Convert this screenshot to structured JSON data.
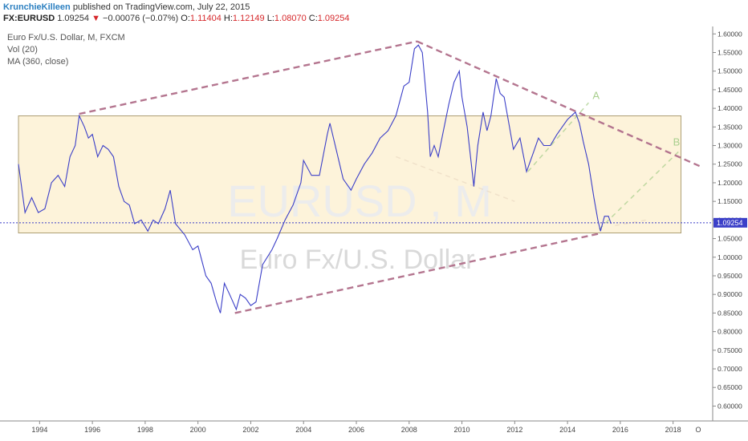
{
  "header": {
    "author": "KrunchieKilleen",
    "published_text": "published on TradingView.com, July 22, 2015"
  },
  "quote": {
    "symbol": "FX:EURUSD",
    "last": "1.09254",
    "change": "−0.00076 (−0.07%)",
    "open_label": "O:",
    "open": "1.11404",
    "high_label": "H:",
    "high": "1.12149",
    "low_label": "L:",
    "low": "1.08070",
    "close_label": "C:",
    "close": "1.09254"
  },
  "legend": {
    "title": "Euro Fx/U.S. Dollar, M, FXCM",
    "volume": "Vol (20)",
    "ma": "MA (360, close)"
  },
  "watermark": {
    "symbol": "EURUSD , M",
    "name": "Euro Fx/U.S. Dollar"
  },
  "annotations": {
    "label_a": "A",
    "label_b": "B"
  },
  "colors": {
    "price_line": "#3b3fc8",
    "trend_line": "#b4758f",
    "projection": "#a9cf8e",
    "zone_fill": "#fdf1d3",
    "zone_border": "#9a8a5a",
    "last_price_bg": "#3b3fc8"
  },
  "chart_data": {
    "type": "line",
    "series": [
      {
        "values": [
          [
            1993.2,
            1.25
          ],
          [
            1993.45,
            1.12
          ],
          [
            1993.7,
            1.16
          ],
          [
            1993.95,
            1.12
          ],
          [
            1994.2,
            1.13
          ],
          [
            1994.45,
            1.2
          ],
          [
            1994.7,
            1.22
          ],
          [
            1994.95,
            1.19
          ],
          [
            1995.15,
            1.27
          ],
          [
            1995.35,
            1.3
          ],
          [
            1995.5,
            1.38
          ],
          [
            1995.7,
            1.35
          ],
          [
            1995.85,
            1.32
          ],
          [
            1996.0,
            1.33
          ],
          [
            1996.2,
            1.27
          ],
          [
            1996.4,
            1.3
          ],
          [
            1996.6,
            1.29
          ],
          [
            1996.8,
            1.27
          ],
          [
            1997.0,
            1.19
          ],
          [
            1997.2,
            1.15
          ],
          [
            1997.4,
            1.14
          ],
          [
            1997.6,
            1.09
          ],
          [
            1997.85,
            1.1
          ],
          [
            1998.1,
            1.07
          ],
          [
            1998.3,
            1.1
          ],
          [
            1998.5,
            1.09
          ],
          [
            1998.75,
            1.13
          ],
          [
            1998.95,
            1.18
          ],
          [
            1999.15,
            1.09
          ],
          [
            1999.5,
            1.06
          ],
          [
            1999.8,
            1.02
          ],
          [
            2000.0,
            1.03
          ],
          [
            2000.3,
            0.95
          ],
          [
            2000.5,
            0.93
          ],
          [
            2000.7,
            0.88
          ],
          [
            2000.85,
            0.85
          ],
          [
            2001.0,
            0.93
          ],
          [
            2001.2,
            0.9
          ],
          [
            2001.45,
            0.86
          ],
          [
            2001.6,
            0.9
          ],
          [
            2001.8,
            0.89
          ],
          [
            2002.0,
            0.87
          ],
          [
            2002.2,
            0.88
          ],
          [
            2002.45,
            0.98
          ],
          [
            2002.8,
            1.02
          ],
          [
            2003.0,
            1.05
          ],
          [
            2003.3,
            1.1
          ],
          [
            2003.6,
            1.14
          ],
          [
            2003.9,
            1.2
          ],
          [
            2004.0,
            1.26
          ],
          [
            2004.3,
            1.22
          ],
          [
            2004.6,
            1.22
          ],
          [
            2004.9,
            1.33
          ],
          [
            2005.0,
            1.36
          ],
          [
            2005.2,
            1.3
          ],
          [
            2005.5,
            1.21
          ],
          [
            2005.8,
            1.18
          ],
          [
            2006.0,
            1.21
          ],
          [
            2006.3,
            1.25
          ],
          [
            2006.6,
            1.28
          ],
          [
            2006.9,
            1.32
          ],
          [
            2007.2,
            1.34
          ],
          [
            2007.5,
            1.38
          ],
          [
            2007.8,
            1.46
          ],
          [
            2008.0,
            1.47
          ],
          [
            2008.2,
            1.56
          ],
          [
            2008.35,
            1.57
          ],
          [
            2008.5,
            1.55
          ],
          [
            2008.6,
            1.47
          ],
          [
            2008.7,
            1.39
          ],
          [
            2008.8,
            1.27
          ],
          [
            2008.95,
            1.3
          ],
          [
            2009.1,
            1.27
          ],
          [
            2009.3,
            1.34
          ],
          [
            2009.5,
            1.41
          ],
          [
            2009.7,
            1.47
          ],
          [
            2009.9,
            1.5
          ],
          [
            2010.0,
            1.43
          ],
          [
            2010.2,
            1.35
          ],
          [
            2010.45,
            1.19
          ],
          [
            2010.6,
            1.3
          ],
          [
            2010.8,
            1.39
          ],
          [
            2010.95,
            1.34
          ],
          [
            2011.1,
            1.38
          ],
          [
            2011.3,
            1.48
          ],
          [
            2011.45,
            1.44
          ],
          [
            2011.6,
            1.43
          ],
          [
            2011.8,
            1.35
          ],
          [
            2011.95,
            1.29
          ],
          [
            2012.2,
            1.32
          ],
          [
            2012.45,
            1.23
          ],
          [
            2012.7,
            1.28
          ],
          [
            2012.9,
            1.32
          ],
          [
            2013.1,
            1.3
          ],
          [
            2013.35,
            1.3
          ],
          [
            2013.6,
            1.33
          ],
          [
            2013.8,
            1.35
          ],
          [
            2014.0,
            1.37
          ],
          [
            2014.3,
            1.39
          ],
          [
            2014.45,
            1.36
          ],
          [
            2014.6,
            1.31
          ],
          [
            2014.8,
            1.25
          ],
          [
            2015.0,
            1.16
          ],
          [
            2015.15,
            1.1
          ],
          [
            2015.25,
            1.07
          ],
          [
            2015.4,
            1.11
          ],
          [
            2015.55,
            1.11
          ],
          [
            2015.65,
            1.09
          ]
        ]
      }
    ],
    "xlim": [
      1992.5,
      2019.5
    ],
    "ylim": [
      0.56,
      1.62
    ],
    "x_ticks": [
      1994,
      1996,
      1998,
      2000,
      2002,
      2004,
      2006,
      2008,
      2010,
      2012,
      2014,
      2016,
      2018
    ],
    "x_tick_labels": [
      "1994",
      "1996",
      "1998",
      "2000",
      "2002",
      "2004",
      "2006",
      "2008",
      "2010",
      "2012",
      "2014",
      "2016",
      "2018"
    ],
    "x_extra_label": "O",
    "y_ticks": [
      0.6,
      0.65,
      0.7,
      0.75,
      0.8,
      0.85,
      0.9,
      0.95,
      1.0,
      1.05,
      1.1,
      1.15,
      1.2,
      1.25,
      1.3,
      1.35,
      1.4,
      1.45,
      1.5,
      1.55,
      1.6
    ],
    "y_tick_labels": [
      "0.60000",
      "0.65000",
      "0.70000",
      "0.75000",
      "0.80000",
      "0.85000",
      "0.90000",
      "0.95000",
      "1.00000",
      "1.05000",
      "1.10000",
      "1.15000",
      "1.20000",
      "1.25000",
      "1.30000",
      "1.35000",
      "1.40000",
      "1.45000",
      "1.50000",
      "1.55000",
      "1.60000"
    ],
    "last_price": 1.09254,
    "last_price_label": "1.09254",
    "grid": false,
    "zone": {
      "x": [
        1993.2,
        2018.3
      ],
      "y": [
        1.065,
        1.38
      ]
    },
    "trend_lines": [
      {
        "from": [
          1995.5,
          1.385
        ],
        "to": [
          2008.3,
          1.58
        ]
      },
      {
        "from": [
          2008.3,
          1.58
        ],
        "to": [
          2019.0,
          1.245
        ]
      },
      {
        "from": [
          2001.4,
          0.85
        ],
        "to": [
          2015.3,
          1.065
        ]
      }
    ],
    "projections": [
      {
        "from": [
          2012.5,
          1.23
        ],
        "to": [
          2014.8,
          1.415
        ]
      },
      {
        "from": [
          2015.2,
          1.075
        ],
        "to": [
          2018.3,
          1.29
        ]
      },
      {
        "from": [
          2007.5,
          1.27
        ],
        "to": [
          2012.0,
          1.15
        ]
      },
      {
        "from": [
          2015.8,
          1.085
        ],
        "to": [
          2017.0,
          1.1
        ]
      }
    ],
    "label_points": {
      "A": [
        2014.95,
        1.425
      ],
      "B": [
        2018.0,
        1.3
      ]
    }
  }
}
